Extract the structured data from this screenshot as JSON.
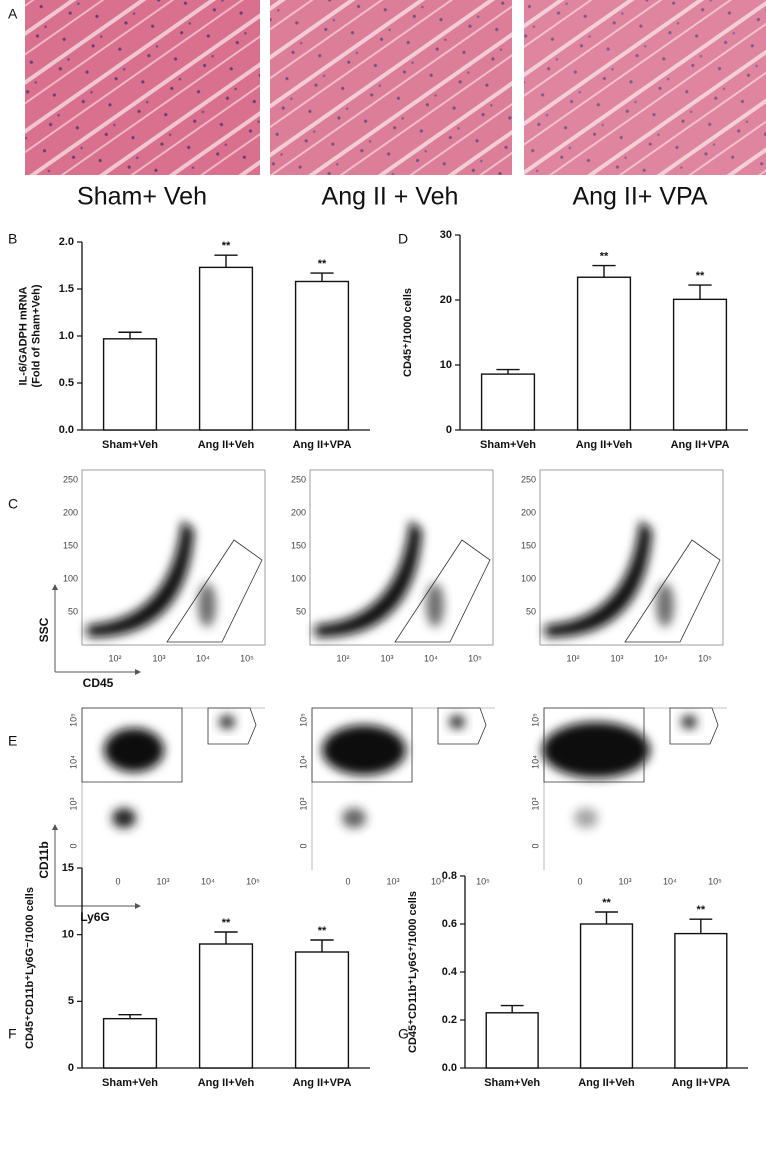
{
  "panel_a": {
    "label": "A",
    "captions": [
      "Sham+ Veh",
      "Ang II + Veh",
      "Ang II+ VPA"
    ]
  },
  "panel_c": {
    "label": "C",
    "yticks": [
      250,
      200,
      150,
      100,
      50
    ],
    "xticks": [
      "10²",
      "10³",
      "10⁴",
      "10⁵"
    ],
    "ylabel": "SSC",
    "xlabel": "CD45"
  },
  "panel_e": {
    "label": "E",
    "yticks": [
      "10⁵",
      "10⁴",
      "10³",
      "0"
    ],
    "xticks": [
      "0",
      "10³",
      "10⁴",
      "10⁵"
    ],
    "ylabel": "CD11b",
    "xlabel": "Ly6G"
  },
  "chart_data": [
    {
      "type": "bar",
      "panel": "B",
      "ylabel": [
        "IL-6/GADPH mRNA",
        "(Fold of Sham+Veh)"
      ],
      "categories": [
        "Sham+Veh",
        "Ang II+Veh",
        "Ang II+VPA"
      ],
      "values": [
        0.97,
        1.73,
        1.58
      ],
      "errors": [
        0.07,
        0.13,
        0.09
      ],
      "annotations": [
        null,
        "**",
        "**"
      ],
      "color": "#ffffff",
      "ylim": [
        0,
        2
      ],
      "yticks": [
        {
          "value": 0,
          "label": "0.0"
        },
        0.5,
        {
          "value": 1,
          "label": "1.0"
        },
        1.5,
        {
          "value": 2,
          "label": "2.0"
        }
      ]
    },
    {
      "type": "bar",
      "panel": "D",
      "ylabel": [
        "CD45⁺/1000 cells"
      ],
      "categories": [
        "Sham+Veh",
        "Ang II+Veh",
        "Ang II+VPA"
      ],
      "values": [
        8.6,
        23.5,
        20.1
      ],
      "errors": [
        0.7,
        1.8,
        2.2
      ],
      "annotations": [
        null,
        "**",
        "**"
      ],
      "color": "#ffffff",
      "ylim": [
        0,
        30
      ],
      "yticks": [
        0,
        10,
        20,
        30
      ]
    },
    {
      "type": "bar",
      "panel": "F",
      "ylabel": [
        "CD45⁺CD11b⁺Ly6G⁻/1000 cells"
      ],
      "categories": [
        "Sham+Veh",
        "Ang II+Veh",
        "Ang II+VPA"
      ],
      "values": [
        3.7,
        9.3,
        8.7
      ],
      "errors": [
        0.3,
        0.9,
        0.9
      ],
      "annotations": [
        null,
        "**",
        "**"
      ],
      "color": "#ffffff",
      "ylim": [
        0,
        15
      ],
      "yticks": [
        0,
        5,
        10,
        15
      ]
    },
    {
      "type": "bar",
      "panel": "G",
      "ylabel": [
        "CD45⁺CD11b⁺Ly6G⁺/1000 cells"
      ],
      "categories": [
        "Sham+Veh",
        "Ang II+Veh",
        "Ang II+VPA"
      ],
      "values": [
        0.23,
        0.6,
        0.56
      ],
      "errors": [
        0.03,
        0.05,
        0.06
      ],
      "annotations": [
        null,
        "**",
        "**"
      ],
      "color": "#ffffff",
      "ylim": [
        0,
        0.8
      ],
      "yticks": [
        {
          "value": 0,
          "label": "0.0"
        },
        0.2,
        0.4,
        0.6,
        0.8
      ]
    }
  ]
}
